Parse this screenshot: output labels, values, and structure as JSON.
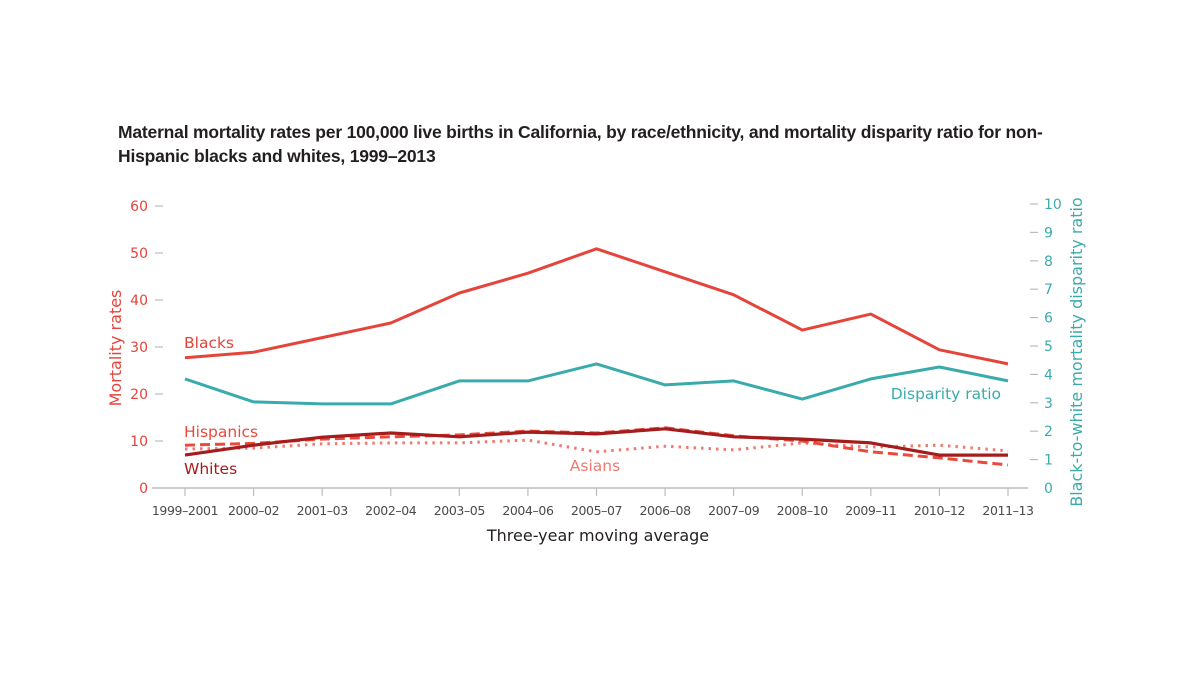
{
  "chart_data": {
    "type": "line",
    "title": "Maternal mortality rates per 100,000 live births in California, by race/ethnicity, and mortality disparity ratio for non-Hispanic blacks and whites, 1999–2013",
    "xlabel": "Three-year moving average",
    "ylabel": "Mortality rates",
    "y2label": "Black-to-white mortality disparity ratio",
    "ylim": [
      0,
      60
    ],
    "y2lim": [
      0,
      10
    ],
    "yticks": [
      0,
      10,
      20,
      30,
      40,
      50,
      60
    ],
    "y2ticks": [
      0,
      1,
      2,
      3,
      4,
      5,
      6,
      7,
      8,
      9,
      10
    ],
    "grid": false,
    "legend": "inline labels",
    "categories": [
      "1999–2001",
      "2000–02",
      "2001–03",
      "2002–04",
      "2003–05",
      "2004–06",
      "2005–07",
      "2006–08",
      "2007–09",
      "2008–10",
      "2009–11",
      "2010–12",
      "2011–13"
    ],
    "series": [
      {
        "name": "Blacks",
        "axis": "left",
        "style": "solid",
        "color": "#e5443a",
        "values": [
          27.7,
          28.9,
          32.0,
          35.1,
          41.5,
          45.7,
          50.9,
          46.0,
          41.1,
          33.6,
          37.0,
          29.4,
          26.4
        ]
      },
      {
        "name": "Disparity ratio",
        "axis": "right",
        "style": "solid",
        "color": "#3aabac",
        "values": [
          3.84,
          3.03,
          2.96,
          2.96,
          3.77,
          3.77,
          4.37,
          3.63,
          3.77,
          3.13,
          3.84,
          4.26,
          3.77
        ]
      },
      {
        "name": "Hispanics",
        "axis": "left",
        "style": "dashed",
        "color": "#e84a3c",
        "values": [
          9.1,
          9.5,
          10.4,
          10.9,
          11.3,
          12.1,
          11.7,
          12.8,
          11.1,
          10.0,
          7.7,
          6.4,
          4.9
        ]
      },
      {
        "name": "Whites",
        "axis": "left",
        "style": "solid",
        "color": "#a51c1c",
        "values": [
          7.0,
          9.1,
          10.8,
          11.7,
          10.9,
          11.9,
          11.5,
          12.6,
          10.9,
          10.4,
          9.6,
          7.0,
          7.0
        ]
      },
      {
        "name": "Asians",
        "axis": "left",
        "style": "dotted",
        "color": "#f07a70",
        "values": [
          8.3,
          8.5,
          9.4,
          9.6,
          9.6,
          10.2,
          7.7,
          8.9,
          8.1,
          9.6,
          8.7,
          9.1,
          7.9
        ]
      }
    ],
    "annotations": [
      {
        "text": "Blacks",
        "series": "Blacks"
      },
      {
        "text": "Disparity ratio",
        "series": "Disparity ratio"
      },
      {
        "text": "Hispanics",
        "series": "Hispanics"
      },
      {
        "text": "Whites",
        "series": "Whites"
      },
      {
        "text": "Asians",
        "series": "Asians"
      }
    ],
    "colors": {
      "left_axis": "#e5443a",
      "right_axis": "#3aabac",
      "axis_line": "#bcbcbc",
      "text": "#231f20"
    }
  }
}
